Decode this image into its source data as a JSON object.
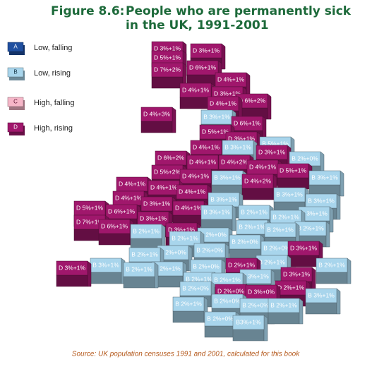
{
  "figure": "Figure 8.6:",
  "title_lines": [
    "People who are permanently sick",
    "in the UK, 1991-2001"
  ],
  "legend": [
    {
      "letter": "A",
      "label": "Low, falling",
      "color": "#1f4fa0",
      "text": "#ffffff"
    },
    {
      "letter": "B",
      "label": "Low, rising",
      "color": "#a8d5ec",
      "text": "#123344"
    },
    {
      "letter": "C",
      "label": "High, falling",
      "color": "#f6b6c8",
      "text": "#5a1030"
    },
    {
      "letter": "D",
      "label": "High, rising",
      "color": "#a0176c",
      "text": "#ffffff"
    }
  ],
  "blocks": [
    "D 3%+1%",
    "D 3%+1%",
    "D 5%+1%",
    "D 7%+2%",
    "D 6%+1%",
    "D 4%+1%",
    "D 4%+1%",
    "D 3%+1%",
    "D 4%+1%",
    "D 6%+2%",
    "D 4%+3%",
    "B 3%+1%",
    "D 6%+1%",
    "D 5%+1%",
    "D 3%+1%",
    "B 5%+1%",
    "D 4%+1%",
    "B 3%+1%",
    "D 3%+1%",
    "B 2%+0%",
    "D 6%+2%",
    "D 4%+1%",
    "D 4%+2%",
    "D 4%+1%",
    "D 5%+1%",
    "B 3%+1%",
    "D 5%+2%",
    "D 4%+1%",
    "B 3%+1%",
    "D 4%+2%",
    "D 4%+1%",
    "D 4%+1%",
    "D 4%+1%",
    "B 3%+1%",
    "B 3%+1%",
    "B 3%+1%",
    "D 4%+1%",
    "D 3%+1%",
    "D 4%+1%",
    "B 3%+1%",
    "B 2%+1%",
    "B 3%+1%",
    "D 5%+1%",
    "D 6%+1%",
    "D 3%+1%",
    "B 2%+1%",
    "D 7%+1%",
    "D 6%+1%",
    "B 2%+1%",
    "D 3%+1%",
    "B 2%+1%",
    "B 2%+1%",
    "B 2%+1%",
    "B 2%+1%",
    "B 2%+0%",
    "B 2%+0%",
    "B 2%+0%",
    "B 2%+0%",
    "B 2%+0%",
    "B 2%+1%",
    "D 3%+1%",
    "B 2%+1%",
    "B 2%+0%",
    "D 2%+1%",
    "B 2%+1%",
    "D 3%+1%",
    "B 2%+1%",
    "B 3%+1%",
    "B 2%+1%",
    "D 3%+1%",
    "B 2%+1%",
    "B 3%+1%",
    "B 2%+1%",
    "D 2%+1%",
    "B 2%+0%",
    "D 2%+0%",
    "D 3%+0%",
    "B 3%+1%",
    "B 2%+1%",
    "B 2%+0%",
    "B 2%+0%",
    "B 2%+1%",
    "B 2%+0%",
    "B3%+1%"
  ],
  "source": "Source: UK population censuses 1991 and 2001, calculated for this book"
}
